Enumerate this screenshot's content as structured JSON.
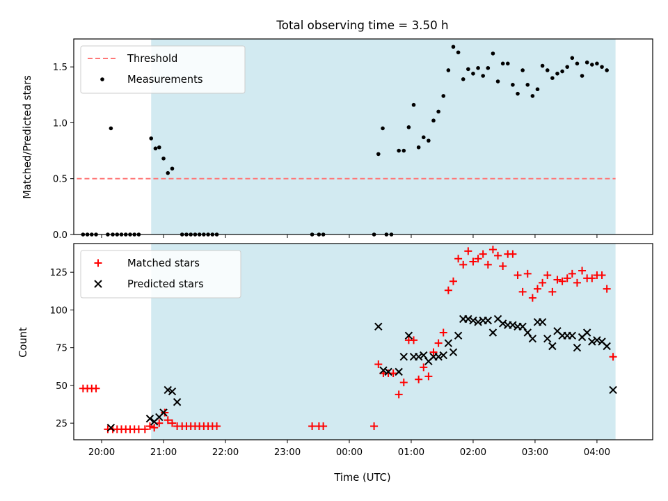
{
  "chart_data": {
    "title": "Total observing time = 3.50 h",
    "xlabel": "Time (UTC)",
    "x_units": "hours since 20:00 UTC (values above 4 wrap past midnight)",
    "x_ticks": [
      {
        "x": 0,
        "label": "20:00"
      },
      {
        "x": 1,
        "label": "21:00"
      },
      {
        "x": 2,
        "label": "22:00"
      },
      {
        "x": 3,
        "label": "23:00"
      },
      {
        "x": 4,
        "label": "00:00"
      },
      {
        "x": 5,
        "label": "01:00"
      },
      {
        "x": 6,
        "label": "02:00"
      },
      {
        "x": 7,
        "label": "03:00"
      },
      {
        "x": 8,
        "label": "04:00"
      }
    ],
    "xlim": [
      -0.45,
      8.9
    ],
    "shaded_span": {
      "x": [
        0.8,
        8.3
      ],
      "color": "#add8e6"
    },
    "panels": [
      {
        "type": "scatter",
        "ylabel": "Matched/Predicted stars",
        "ylim": [
          0,
          1.75
        ],
        "yticks": [
          0.0,
          0.5,
          1.0,
          1.5
        ],
        "ytick_labels": [
          "0.0",
          "0.5",
          "1.0",
          "1.5"
        ],
        "legend": {
          "position": "top-left",
          "entries": [
            "Threshold",
            "Measurements"
          ]
        },
        "threshold": {
          "name": "Threshold",
          "y": 0.5,
          "x": [
            -0.4,
            8.3
          ],
          "color": "#ff7777"
        },
        "series": [
          {
            "name": "Measurements",
            "marker": "dot",
            "color": "#000000",
            "points": [
              [
                -0.3,
                0
              ],
              [
                -0.23,
                0
              ],
              [
                -0.16,
                0
              ],
              [
                -0.09,
                0
              ],
              [
                0.1,
                0
              ],
              [
                0.18,
                0
              ],
              [
                0.25,
                0
              ],
              [
                0.32,
                0
              ],
              [
                0.39,
                0
              ],
              [
                0.46,
                0
              ],
              [
                0.53,
                0
              ],
              [
                0.6,
                0
              ],
              [
                1.3,
                0
              ],
              [
                1.37,
                0
              ],
              [
                1.44,
                0
              ],
              [
                1.51,
                0
              ],
              [
                1.58,
                0
              ],
              [
                1.65,
                0
              ],
              [
                1.72,
                0
              ],
              [
                1.79,
                0
              ],
              [
                1.86,
                0
              ],
              [
                3.4,
                0
              ],
              [
                3.51,
                0
              ],
              [
                3.58,
                0
              ],
              [
                4.4,
                0
              ],
              [
                4.6,
                0
              ],
              [
                4.68,
                0
              ],
              [
                0.15,
                0.95
              ],
              [
                0.8,
                0.86
              ],
              [
                0.87,
                0.77
              ],
              [
                0.93,
                0.78
              ],
              [
                1.0,
                0.68
              ],
              [
                1.07,
                0.55
              ],
              [
                1.14,
                0.59
              ],
              [
                4.47,
                0.72
              ],
              [
                4.54,
                0.95
              ],
              [
                4.8,
                0.75
              ],
              [
                4.88,
                0.75
              ],
              [
                4.96,
                0.96
              ],
              [
                5.04,
                1.16
              ],
              [
                5.12,
                0.78
              ],
              [
                5.2,
                0.87
              ],
              [
                5.28,
                0.84
              ],
              [
                5.36,
                1.02
              ],
              [
                5.44,
                1.1
              ],
              [
                5.52,
                1.24
              ],
              [
                5.6,
                1.47
              ],
              [
                5.68,
                1.68
              ],
              [
                5.76,
                1.63
              ],
              [
                5.84,
                1.39
              ],
              [
                5.92,
                1.48
              ],
              [
                6.0,
                1.44
              ],
              [
                6.08,
                1.49
              ],
              [
                6.16,
                1.42
              ],
              [
                6.24,
                1.49
              ],
              [
                6.32,
                1.62
              ],
              [
                6.4,
                1.37
              ],
              [
                6.48,
                1.53
              ],
              [
                6.56,
                1.53
              ],
              [
                6.64,
                1.34
              ],
              [
                6.72,
                1.26
              ],
              [
                6.8,
                1.47
              ],
              [
                6.88,
                1.34
              ],
              [
                6.96,
                1.24
              ],
              [
                7.04,
                1.3
              ],
              [
                7.12,
                1.51
              ],
              [
                7.2,
                1.47
              ],
              [
                7.28,
                1.4
              ],
              [
                7.36,
                1.44
              ],
              [
                7.44,
                1.46
              ],
              [
                7.52,
                1.5
              ],
              [
                7.6,
                1.58
              ],
              [
                7.68,
                1.53
              ],
              [
                7.76,
                1.42
              ],
              [
                7.84,
                1.54
              ],
              [
                7.92,
                1.52
              ],
              [
                8.0,
                1.53
              ],
              [
                8.08,
                1.5
              ],
              [
                8.16,
                1.47
              ]
            ]
          }
        ]
      },
      {
        "type": "scatter",
        "ylabel": "Count",
        "ylim": [
          14,
          144
        ],
        "yticks": [
          25,
          50,
          75,
          100,
          125
        ],
        "ytick_labels": [
          "25",
          "50",
          "75",
          "100",
          "125"
        ],
        "legend": {
          "position": "top-left",
          "entries": [
            "Matched stars",
            "Predicted stars"
          ]
        },
        "series": [
          {
            "name": "Matched stars",
            "marker": "plus",
            "color": "#ff0000",
            "points": [
              [
                -0.3,
                48
              ],
              [
                -0.23,
                48
              ],
              [
                -0.16,
                48
              ],
              [
                -0.09,
                48
              ],
              [
                0.1,
                21
              ],
              [
                0.18,
                21
              ],
              [
                0.25,
                21
              ],
              [
                0.32,
                21
              ],
              [
                0.39,
                21
              ],
              [
                0.46,
                21
              ],
              [
                0.53,
                21
              ],
              [
                0.6,
                21
              ],
              [
                0.7,
                21
              ],
              [
                0.78,
                23
              ],
              [
                0.85,
                22
              ],
              [
                0.93,
                25
              ],
              [
                1.02,
                32
              ],
              [
                1.07,
                27
              ],
              [
                1.14,
                25
              ],
              [
                1.22,
                23
              ],
              [
                1.3,
                23
              ],
              [
                1.37,
                23
              ],
              [
                1.44,
                23
              ],
              [
                1.51,
                23
              ],
              [
                1.58,
                23
              ],
              [
                1.65,
                23
              ],
              [
                1.72,
                23
              ],
              [
                1.79,
                23
              ],
              [
                1.86,
                23
              ],
              [
                3.4,
                23
              ],
              [
                3.51,
                23
              ],
              [
                3.58,
                23
              ],
              [
                4.4,
                23
              ],
              [
                4.47,
                64
              ],
              [
                4.55,
                58
              ],
              [
                4.63,
                58
              ],
              [
                4.71,
                58
              ],
              [
                4.8,
                44
              ],
              [
                4.88,
                52
              ],
              [
                4.96,
                80
              ],
              [
                5.04,
                80
              ],
              [
                5.12,
                54
              ],
              [
                5.2,
                62
              ],
              [
                5.28,
                56
              ],
              [
                5.36,
                72
              ],
              [
                5.44,
                78
              ],
              [
                5.52,
                85
              ],
              [
                5.6,
                113
              ],
              [
                5.68,
                119
              ],
              [
                5.76,
                134
              ],
              [
                5.84,
                130
              ],
              [
                5.92,
                139
              ],
              [
                6.0,
                132
              ],
              [
                6.08,
                134
              ],
              [
                6.16,
                137
              ],
              [
                6.24,
                130
              ],
              [
                6.32,
                140
              ],
              [
                6.4,
                136
              ],
              [
                6.48,
                129
              ],
              [
                6.56,
                137
              ],
              [
                6.64,
                137
              ],
              [
                6.72,
                123
              ],
              [
                6.8,
                112
              ],
              [
                6.88,
                124
              ],
              [
                6.96,
                108
              ],
              [
                7.04,
                114
              ],
              [
                7.12,
                118
              ],
              [
                7.2,
                123
              ],
              [
                7.28,
                112
              ],
              [
                7.36,
                120
              ],
              [
                7.44,
                119
              ],
              [
                7.52,
                121
              ],
              [
                7.6,
                124
              ],
              [
                7.68,
                118
              ],
              [
                7.76,
                126
              ],
              [
                7.84,
                121
              ],
              [
                7.92,
                121
              ],
              [
                8.0,
                123
              ],
              [
                8.08,
                123
              ],
              [
                8.16,
                114
              ],
              [
                8.26,
                69
              ]
            ]
          },
          {
            "name": "Predicted stars",
            "marker": "x",
            "color": "#000000",
            "points": [
              [
                0.15,
                22
              ],
              [
                0.78,
                28
              ],
              [
                0.85,
                26
              ],
              [
                0.93,
                29
              ],
              [
                1.0,
                32
              ],
              [
                1.07,
                47
              ],
              [
                1.14,
                46
              ],
              [
                1.22,
                39
              ],
              [
                4.47,
                89
              ],
              [
                4.55,
                60
              ],
              [
                4.63,
                59
              ],
              [
                4.8,
                59
              ],
              [
                4.88,
                69
              ],
              [
                4.96,
                83
              ],
              [
                5.04,
                69
              ],
              [
                5.12,
                69
              ],
              [
                5.2,
                70
              ],
              [
                5.28,
                66
              ],
              [
                5.36,
                69
              ],
              [
                5.44,
                69
              ],
              [
                5.52,
                70
              ],
              [
                5.6,
                78
              ],
              [
                5.68,
                72
              ],
              [
                5.76,
                83
              ],
              [
                5.84,
                94
              ],
              [
                5.92,
                94
              ],
              [
                6.0,
                93
              ],
              [
                6.08,
                92
              ],
              [
                6.16,
                93
              ],
              [
                6.24,
                93
              ],
              [
                6.32,
                85
              ],
              [
                6.4,
                94
              ],
              [
                6.48,
                91
              ],
              [
                6.56,
                90
              ],
              [
                6.64,
                90
              ],
              [
                6.72,
                89
              ],
              [
                6.8,
                89
              ],
              [
                6.88,
                85
              ],
              [
                6.96,
                81
              ],
              [
                7.04,
                92
              ],
              [
                7.12,
                92
              ],
              [
                7.2,
                81
              ],
              [
                7.28,
                76
              ],
              [
                7.36,
                86
              ],
              [
                7.44,
                83
              ],
              [
                7.52,
                83
              ],
              [
                7.6,
                83
              ],
              [
                7.68,
                75
              ],
              [
                7.76,
                82
              ],
              [
                7.84,
                85
              ],
              [
                7.92,
                79
              ],
              [
                8.0,
                80
              ],
              [
                8.08,
                79
              ],
              [
                8.16,
                76
              ],
              [
                8.26,
                47
              ]
            ]
          }
        ]
      }
    ]
  }
}
